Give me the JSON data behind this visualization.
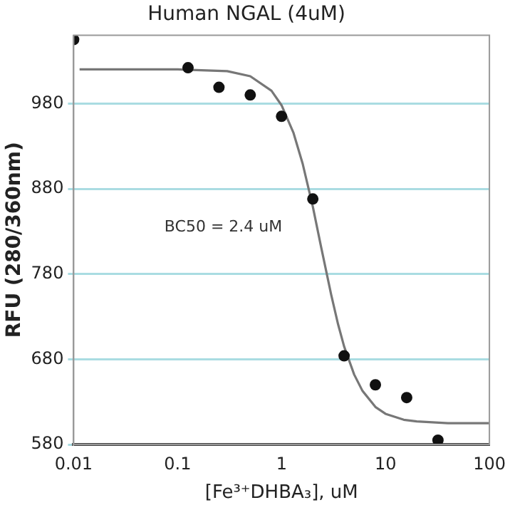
{
  "chart_data": {
    "type": "scatter",
    "title": "Human NGAL (4uM)",
    "xlabel": "[Fe³⁺DHBA₃], uM",
    "ylabel": "RFU (280/360nm)",
    "annotations": [
      "BC50 = 2.4 uM"
    ],
    "log": "x",
    "grid": "y",
    "xlim": [
      0.01,
      100
    ],
    "xticks": [
      0.01,
      0.1,
      1,
      10,
      100
    ],
    "ylim": [
      580,
      1060
    ],
    "yticks": [
      580,
      680,
      780,
      880,
      980
    ],
    "series": [
      {
        "type": "scatter",
        "color": "#111111",
        "marker": "circle",
        "x": [
          0.01,
          0.126,
          0.25,
          0.5,
          1,
          2,
          4,
          8,
          16,
          32
        ],
        "values": [
          1055,
          1022,
          999,
          990,
          965,
          868,
          684,
          650,
          635,
          585
        ]
      },
      {
        "type": "line",
        "color": "#777777",
        "marker": "none",
        "line_style": "solid",
        "x": [
          0.0114,
          0.1,
          0.3,
          0.5,
          0.8,
          1,
          1.3,
          1.6,
          2,
          2.4,
          3,
          3.5,
          4,
          5,
          6,
          8,
          10,
          15,
          20,
          40,
          100
        ],
        "values": [
          1020,
          1020,
          1018,
          1012,
          995,
          978,
          946,
          909,
          859,
          812,
          756,
          721,
          695,
          662,
          643,
          624,
          616,
          609,
          607,
          605,
          605
        ]
      }
    ]
  }
}
